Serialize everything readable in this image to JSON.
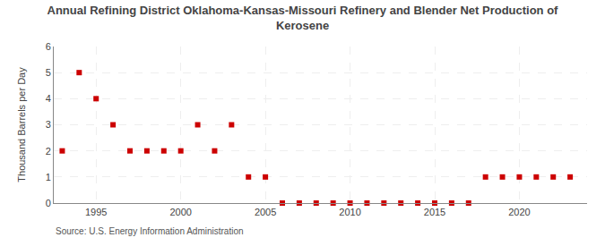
{
  "chart_data": {
    "type": "scatter",
    "title": "Annual Refining District Oklahoma-Kansas-Missouri Refinery and Blender Net Production of\nKerosene",
    "y_label": "Thousand Barrels per Day",
    "annotations": [
      "Source: U.S. Energy Information Administration"
    ],
    "x": [
      1993,
      1994,
      1995,
      1996,
      1997,
      1998,
      1999,
      2000,
      2001,
      2002,
      2003,
      2004,
      2005,
      2006,
      2007,
      2008,
      2009,
      2010,
      2011,
      2012,
      2013,
      2014,
      2015,
      2016,
      2017,
      2018,
      2019,
      2020,
      2021,
      2022,
      2023
    ],
    "values": [
      2,
      5,
      4,
      3,
      2,
      2,
      2,
      2,
      3,
      2,
      3,
      1,
      1,
      0,
      0,
      0,
      0,
      0,
      0,
      0,
      0,
      0,
      0,
      0,
      0,
      1,
      1,
      1,
      1,
      1,
      1
    ],
    "color": "#cc0000",
    "marker": "square",
    "xlim": [
      1992.5,
      2024
    ],
    "xticks": [
      1995,
      2000,
      2005,
      2010,
      2015,
      2020
    ],
    "ylim": [
      0,
      6
    ],
    "yticks": [
      0,
      1,
      2,
      3,
      4,
      5,
      6
    ],
    "grid": true
  }
}
